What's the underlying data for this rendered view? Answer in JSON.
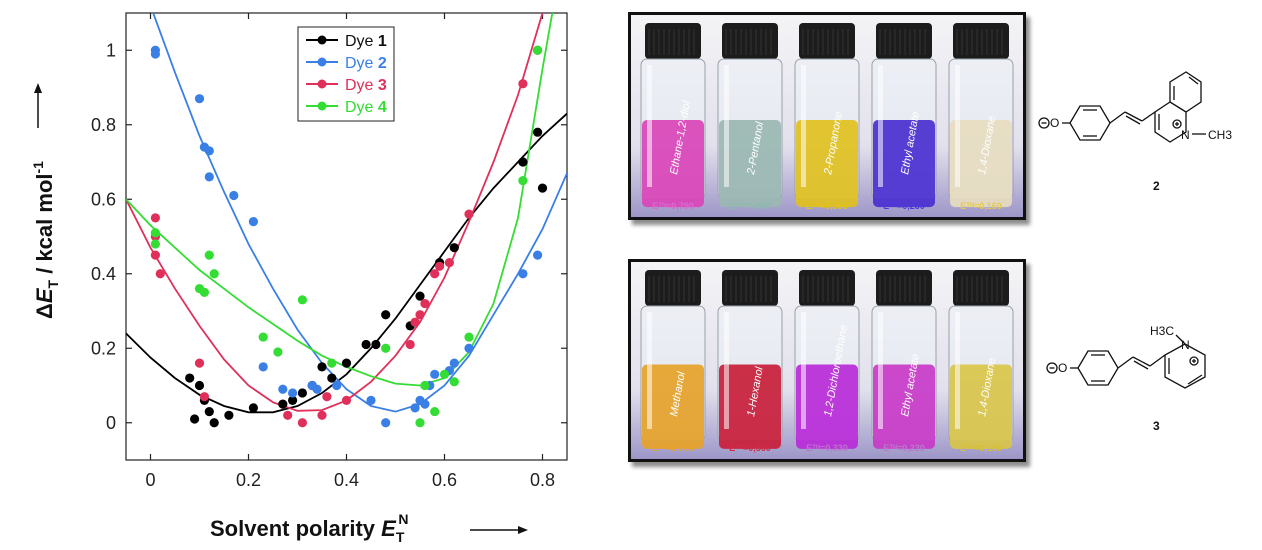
{
  "chart_data": {
    "type": "scatter",
    "xlabel": "Solvent polarity",
    "xlabel_symbol": "E",
    "xlabel_sub": "T",
    "xlabel_sup": "N",
    "ylabel_delta": "Δ",
    "ylabel_symbol": "E",
    "ylabel_sub": "T",
    "ylabel_unit": " / kcal mol",
    "ylabel_sup": "-1",
    "xlim": [
      -0.05,
      0.85
    ],
    "ylim": [
      -0.1,
      1.1
    ],
    "xticks": [
      "0",
      "0.2",
      "0.4",
      "0.6",
      "0.8"
    ],
    "xtick_values": [
      0,
      0.2,
      0.4,
      0.6,
      0.8
    ],
    "yticks": [
      "0",
      "0.2",
      "0.4",
      "0.6",
      "0.8",
      "1"
    ],
    "ytick_values": [
      0,
      0.2,
      0.4,
      0.6,
      0.8,
      1.0
    ],
    "legend_position": "top-center",
    "series": [
      {
        "name_prefix": "Dye ",
        "name_num": "1",
        "color": "#000000",
        "points": [
          [
            0.08,
            0.12
          ],
          [
            0.09,
            0.01
          ],
          [
            0.1,
            0.1
          ],
          [
            0.11,
            0.06
          ],
          [
            0.12,
            0.03
          ],
          [
            0.13,
            0.0
          ],
          [
            0.16,
            0.02
          ],
          [
            0.21,
            0.04
          ],
          [
            0.27,
            0.05
          ],
          [
            0.29,
            0.06
          ],
          [
            0.31,
            0.08
          ],
          [
            0.33,
            0.1
          ],
          [
            0.35,
            0.15
          ],
          [
            0.37,
            0.12
          ],
          [
            0.4,
            0.16
          ],
          [
            0.44,
            0.21
          ],
          [
            0.46,
            0.21
          ],
          [
            0.48,
            0.29
          ],
          [
            0.53,
            0.26
          ],
          [
            0.55,
            0.34
          ],
          [
            0.59,
            0.43
          ],
          [
            0.62,
            0.47
          ],
          [
            0.76,
            0.7
          ],
          [
            0.79,
            0.78
          ],
          [
            0.8,
            0.63
          ]
        ],
        "curve": [
          [
            -0.05,
            0.24
          ],
          [
            0.0,
            0.175
          ],
          [
            0.05,
            0.12
          ],
          [
            0.1,
            0.075
          ],
          [
            0.15,
            0.045
          ],
          [
            0.2,
            0.028
          ],
          [
            0.25,
            0.028
          ],
          [
            0.3,
            0.045
          ],
          [
            0.35,
            0.08
          ],
          [
            0.4,
            0.13
          ],
          [
            0.45,
            0.2
          ],
          [
            0.5,
            0.28
          ],
          [
            0.55,
            0.37
          ],
          [
            0.6,
            0.46
          ],
          [
            0.65,
            0.55
          ],
          [
            0.7,
            0.63
          ],
          [
            0.75,
            0.7
          ],
          [
            0.8,
            0.77
          ],
          [
            0.85,
            0.83
          ]
        ]
      },
      {
        "name_prefix": "Dye ",
        "name_num": "2",
        "color": "#3a7fe6",
        "points": [
          [
            0.01,
            1.0
          ],
          [
            0.01,
            0.99
          ],
          [
            0.1,
            0.87
          ],
          [
            0.11,
            0.74
          ],
          [
            0.12,
            0.73
          ],
          [
            0.12,
            0.66
          ],
          [
            0.17,
            0.61
          ],
          [
            0.21,
            0.54
          ],
          [
            0.23,
            0.15
          ],
          [
            0.27,
            0.09
          ],
          [
            0.29,
            0.08
          ],
          [
            0.33,
            0.1
          ],
          [
            0.34,
            0.09
          ],
          [
            0.38,
            0.1
          ],
          [
            0.45,
            0.06
          ],
          [
            0.48,
            0.0
          ],
          [
            0.54,
            0.04
          ],
          [
            0.55,
            0.06
          ],
          [
            0.56,
            0.05
          ],
          [
            0.57,
            0.1
          ],
          [
            0.58,
            0.13
          ],
          [
            0.61,
            0.14
          ],
          [
            0.62,
            0.16
          ],
          [
            0.65,
            0.2
          ],
          [
            0.76,
            0.4
          ],
          [
            0.79,
            0.45
          ]
        ],
        "curve": [
          [
            0.0,
            1.12
          ],
          [
            0.05,
            0.94
          ],
          [
            0.1,
            0.77
          ],
          [
            0.15,
            0.62
          ],
          [
            0.2,
            0.48
          ],
          [
            0.25,
            0.36
          ],
          [
            0.3,
            0.25
          ],
          [
            0.35,
            0.16
          ],
          [
            0.4,
            0.09
          ],
          [
            0.45,
            0.045
          ],
          [
            0.5,
            0.03
          ],
          [
            0.55,
            0.05
          ],
          [
            0.6,
            0.1
          ],
          [
            0.65,
            0.18
          ],
          [
            0.7,
            0.29
          ],
          [
            0.75,
            0.4
          ],
          [
            0.8,
            0.52
          ],
          [
            0.85,
            0.67
          ]
        ]
      },
      {
        "name_prefix": "Dye ",
        "name_num": "3",
        "color": "#e0305a",
        "points": [
          [
            0.01,
            0.55
          ],
          [
            0.01,
            0.5
          ],
          [
            0.01,
            0.45
          ],
          [
            0.02,
            0.4
          ],
          [
            0.1,
            0.16
          ],
          [
            0.11,
            0.07
          ],
          [
            0.28,
            0.02
          ],
          [
            0.31,
            0.0
          ],
          [
            0.35,
            0.02
          ],
          [
            0.36,
            0.07
          ],
          [
            0.4,
            0.06
          ],
          [
            0.53,
            0.21
          ],
          [
            0.54,
            0.27
          ],
          [
            0.55,
            0.29
          ],
          [
            0.56,
            0.32
          ],
          [
            0.58,
            0.4
          ],
          [
            0.59,
            0.42
          ],
          [
            0.61,
            0.43
          ],
          [
            0.65,
            0.56
          ],
          [
            0.76,
            0.91
          ],
          [
            0.79,
            1.0
          ]
        ],
        "curve": [
          [
            -0.05,
            0.6
          ],
          [
            0.0,
            0.47
          ],
          [
            0.05,
            0.36
          ],
          [
            0.1,
            0.26
          ],
          [
            0.15,
            0.17
          ],
          [
            0.2,
            0.1
          ],
          [
            0.25,
            0.055
          ],
          [
            0.3,
            0.032
          ],
          [
            0.35,
            0.034
          ],
          [
            0.4,
            0.06
          ],
          [
            0.45,
            0.11
          ],
          [
            0.5,
            0.18
          ],
          [
            0.55,
            0.27
          ],
          [
            0.6,
            0.39
          ],
          [
            0.65,
            0.54
          ],
          [
            0.7,
            0.7
          ],
          [
            0.75,
            0.88
          ],
          [
            0.8,
            1.1
          ]
        ]
      },
      {
        "name_prefix": "Dye ",
        "name_num": "4",
        "color": "#33dd33",
        "points": [
          [
            0.01,
            0.51
          ],
          [
            0.01,
            0.48
          ],
          [
            0.1,
            0.36
          ],
          [
            0.11,
            0.35
          ],
          [
            0.12,
            0.45
          ],
          [
            0.13,
            0.4
          ],
          [
            0.23,
            0.23
          ],
          [
            0.26,
            0.19
          ],
          [
            0.31,
            0.33
          ],
          [
            0.37,
            0.16
          ],
          [
            0.48,
            0.2
          ],
          [
            0.55,
            0.0
          ],
          [
            0.56,
            0.1
          ],
          [
            0.58,
            0.03
          ],
          [
            0.6,
            0.13
          ],
          [
            0.62,
            0.11
          ],
          [
            0.65,
            0.23
          ],
          [
            0.76,
            0.65
          ],
          [
            0.79,
            1.0
          ]
        ],
        "curve": [
          [
            -0.05,
            0.6
          ],
          [
            0.0,
            0.53
          ],
          [
            0.05,
            0.47
          ],
          [
            0.1,
            0.41
          ],
          [
            0.15,
            0.36
          ],
          [
            0.2,
            0.31
          ],
          [
            0.25,
            0.265
          ],
          [
            0.3,
            0.22
          ],
          [
            0.35,
            0.18
          ],
          [
            0.4,
            0.15
          ],
          [
            0.45,
            0.125
          ],
          [
            0.5,
            0.105
          ],
          [
            0.55,
            0.1
          ],
          [
            0.6,
            0.12
          ],
          [
            0.65,
            0.19
          ],
          [
            0.7,
            0.32
          ],
          [
            0.75,
            0.55
          ],
          [
            0.8,
            0.95
          ],
          [
            0.82,
            1.1
          ]
        ]
      }
    ]
  },
  "photos": {
    "top": {
      "vials": [
        {
          "solvent": "Ethane-1,2-diol",
          "liquid": "#d944b8",
          "value": "Eᵀᴺ=0,790",
          "value_color": "#d96ad0"
        },
        {
          "solvent": "2-Pentanol",
          "liquid": "#9ab7b2",
          "value": "Eᵀᴺ=0,488",
          "value_color": "#8fb8b0"
        },
        {
          "solvent": "2-Propanone",
          "liquid": "#e0c020",
          "value": "Eᵀᴺ=0,360",
          "value_color": "#e2c21a"
        },
        {
          "solvent": "Ethyl acetate",
          "liquid": "#4a2fd0",
          "value": "Eᵀᴺ=0,230",
          "value_color": "#4d3ad8"
        },
        {
          "solvent": "1,4-Dioxane",
          "liquid": "#e6dcc0",
          "value": "Eᵀᴺ=0,160",
          "value_color": "#e8c84a"
        }
      ]
    },
    "bottom": {
      "vials": [
        {
          "solvent": "Methanol",
          "liquid": "#e6a22a",
          "value": "Eᵀᴺ=0,760",
          "value_color": "#e6a22a"
        },
        {
          "solvent": "1-Hexanol",
          "liquid": "#c81e3a",
          "value": "Eᵀᴺ=0,560",
          "value_color": "#d22a44"
        },
        {
          "solvent": "1,2-Dichloroethane",
          "liquid": "#b82ad8",
          "value": "Eᵀᴺ=0,330",
          "value_color": "#c070d0"
        },
        {
          "solvent": "Ethyl acetate",
          "liquid": "#c83ac8",
          "value": "Eᵀᴺ=0,230",
          "value_color": "#b87ac8"
        },
        {
          "solvent": "1,4-Dioxane",
          "liquid": "#d8c44a",
          "value": "Eᵀᴺ=0,160",
          "value_color": "#d8c030"
        }
      ]
    }
  },
  "structures": {
    "dye2": {
      "label": "2",
      "charge_o": "O",
      "n_label": "N",
      "methyl": "CH3"
    },
    "dye3": {
      "label": "3",
      "charge_o": "O",
      "n_label": "N",
      "methyl": "H3C"
    }
  }
}
